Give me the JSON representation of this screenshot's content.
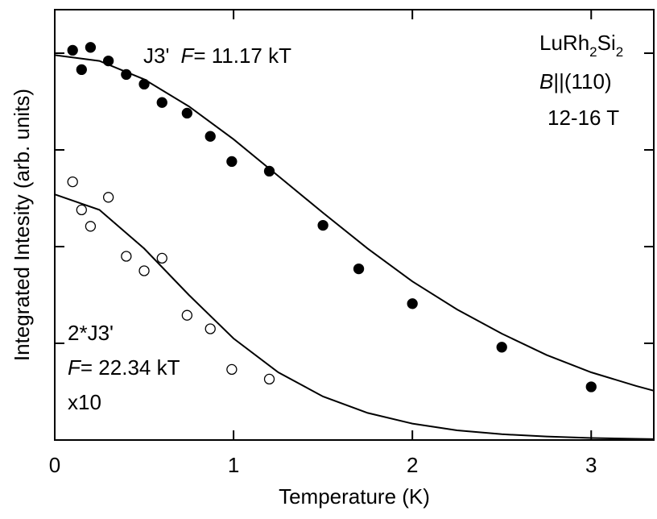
{
  "chart_data": {
    "type": "scatter",
    "xlabel": "Temperature (K)",
    "ylabel": "Integrated Intesity (arb. units)",
    "xlim": [
      0,
      3.35
    ],
    "ylim": [
      0,
      4.45
    ],
    "xticks": [
      0,
      1,
      2,
      3
    ],
    "yticks": [
      0,
      1,
      2,
      3,
      4
    ],
    "series": [
      {
        "name": "J3'",
        "color": "#000000",
        "marker": "filled",
        "x": [
          0.1,
          0.15,
          0.2,
          0.3,
          0.4,
          0.5,
          0.6,
          0.74,
          0.87,
          0.99,
          1.2,
          1.5,
          1.7,
          2.0,
          2.5,
          3.0
        ],
        "values": [
          4.03,
          3.83,
          4.06,
          3.92,
          3.78,
          3.68,
          3.49,
          3.38,
          3.14,
          2.88,
          2.78,
          2.22,
          1.77,
          1.41,
          0.96,
          0.55
        ]
      },
      {
        "name": "2*J3'",
        "color": "#000000",
        "marker": "open",
        "x": [
          0.1,
          0.15,
          0.2,
          0.3,
          0.4,
          0.5,
          0.6,
          0.74,
          0.87,
          0.99,
          1.2
        ],
        "values": [
          2.67,
          2.38,
          2.21,
          2.51,
          1.9,
          1.75,
          1.88,
          1.29,
          1.15,
          0.73,
          0.63
        ]
      },
      {
        "name": "J3' fit",
        "color": "#000000",
        "marker": "line",
        "x": [
          0,
          0.25,
          0.5,
          0.75,
          1,
          1.25,
          1.5,
          1.75,
          2,
          2.25,
          2.5,
          2.75,
          3,
          3.25,
          3.35
        ],
        "values": [
          3.98,
          3.92,
          3.73,
          3.45,
          3.11,
          2.73,
          2.35,
          1.98,
          1.64,
          1.35,
          1.1,
          0.88,
          0.7,
          0.56,
          0.51
        ]
      },
      {
        "name": "2*J3' fit",
        "color": "#000000",
        "marker": "line",
        "x": [
          0,
          0.25,
          0.5,
          0.75,
          1,
          1.25,
          1.5,
          1.75,
          2,
          2.25,
          2.5,
          2.75,
          3,
          3.25,
          3.35
        ],
        "values": [
          2.54,
          2.38,
          1.98,
          1.5,
          1.05,
          0.7,
          0.45,
          0.28,
          0.17,
          0.1,
          0.06,
          0.036,
          0.021,
          0.012,
          0.009
        ]
      }
    ],
    "annotations": {
      "upper": {
        "name": "J3'",
        "f": "F",
        "freq": "= 11.17 kT"
      },
      "sample": {
        "a": "LuRh",
        "a_sub": "2",
        "b": "Si",
        "b_sub": "2",
        "field": "B",
        "dir": "||(110)",
        "range": "12-16 T"
      },
      "lower": {
        "name": "2*J3'",
        "f": "F",
        "freq": "= 22.34 kT",
        "scale": "x10"
      }
    }
  }
}
